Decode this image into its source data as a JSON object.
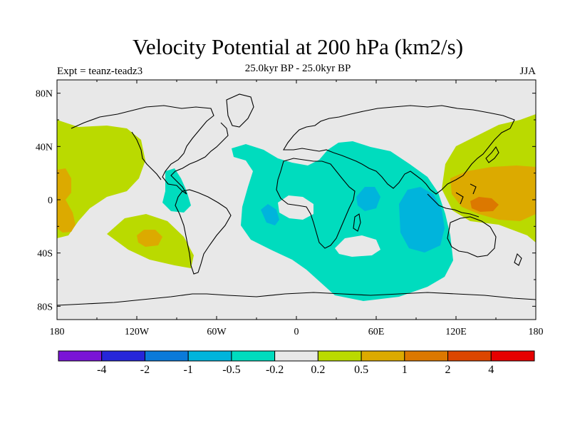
{
  "title": "Velocity Potential at 200 hPa (km2/s)",
  "subtitle": "25.0kyr BP - 25.0kyr BP",
  "expt": "Expt = teanz-teadz3",
  "season": "JJA",
  "map": {
    "projection": "cylindrical equidistant",
    "lon_range": [
      -180,
      180
    ],
    "lat_range": [
      -90,
      90
    ],
    "lat_tick_labels": [
      "80N",
      "40N",
      "0",
      "40S",
      "80S"
    ],
    "lon_tick_labels": [
      "180",
      "120W",
      "60W",
      "0",
      "60E",
      "120E",
      "180"
    ],
    "land_fill": "#e8e8e8",
    "coastline_color": "#000000"
  },
  "colorbar": {
    "colors": [
      "#7a14d6",
      "#2626d9",
      "#0a7ad9",
      "#00b4dc",
      "#00dcbe",
      "#e8e8e8",
      "#bada00",
      "#dcaa00",
      "#dc7800",
      "#dc4600",
      "#e60000"
    ],
    "labels": [
      "-4",
      "-2",
      "-1",
      "-0.5",
      "-0.2",
      "0.2",
      "0.5",
      "1",
      "2",
      "4"
    ]
  }
}
